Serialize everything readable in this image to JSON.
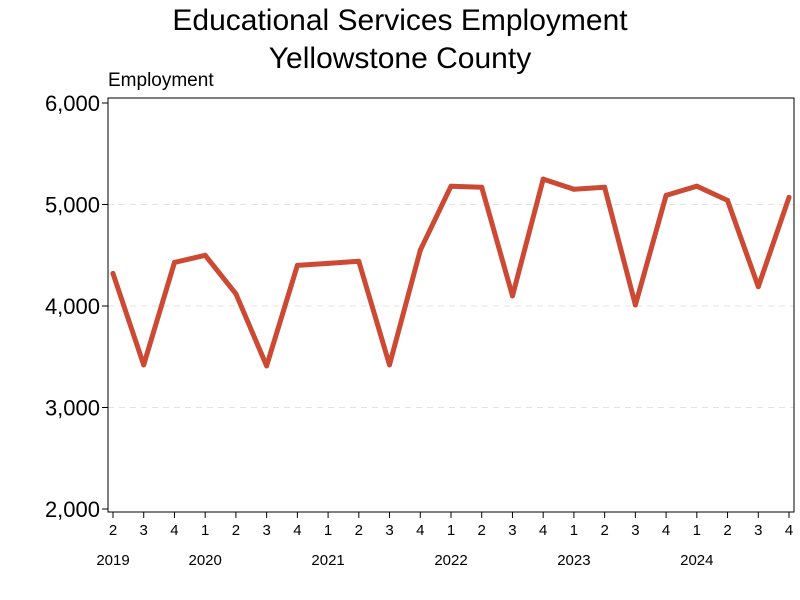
{
  "chart_data": {
    "type": "line",
    "title": [
      "Educational Services Employment",
      "Yellowstone County"
    ],
    "ylabel": "Employment",
    "xlabel": "",
    "ylim": [
      2000,
      6000
    ],
    "yticks": [
      2000,
      3000,
      4000,
      5000,
      6000
    ],
    "ytick_labels": [
      "2,000",
      "3,000",
      "4,000",
      "5,000",
      "6,000"
    ],
    "grid": "horizontal dashed",
    "line_color": "#cc4a33",
    "x_quarters": [
      "2",
      "3",
      "4",
      "1",
      "2",
      "3",
      "4",
      "1",
      "2",
      "3",
      "4",
      "1",
      "2",
      "3",
      "4",
      "1",
      "2",
      "3",
      "4",
      "1",
      "2",
      "3",
      "4"
    ],
    "year_labels": [
      {
        "label": "2019",
        "index": 0
      },
      {
        "label": "2020",
        "index": 3
      },
      {
        "label": "2021",
        "index": 7
      },
      {
        "label": "2022",
        "index": 11
      },
      {
        "label": "2023",
        "index": 15
      },
      {
        "label": "2024",
        "index": 19
      }
    ],
    "series": [
      {
        "values": [
          4320,
          3420,
          4430,
          4500,
          4120,
          3410,
          4400,
          4420,
          4440,
          3420,
          4550,
          5180,
          5170,
          4100,
          5250,
          5150,
          5170,
          4010,
          5090,
          5180,
          5040,
          4190,
          5070
        ]
      }
    ]
  }
}
